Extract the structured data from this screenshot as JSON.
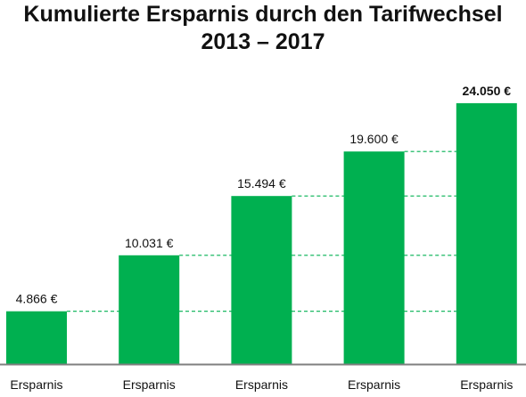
{
  "chart_data": {
    "type": "bar",
    "title": "Kumulierte Ersparnis durch den Tarifwechsel",
    "subtitle": "2013 – 2017",
    "categories": [
      "Ersparnis",
      "Ersparnis",
      "Ersparnis",
      "Ersparnis",
      "Ersparnis"
    ],
    "values": [
      4866,
      10031,
      15494,
      19600,
      24050
    ],
    "value_labels": [
      "4.866 €",
      "10.031 €",
      "15.494 €",
      "19.600 €",
      "24.050 €"
    ],
    "ylim": [
      0,
      27000
    ],
    "bar_color": "#00b050",
    "guide_color": "#00b050",
    "axis_color": "#7f7f7f",
    "grid": false,
    "legend": "none"
  }
}
